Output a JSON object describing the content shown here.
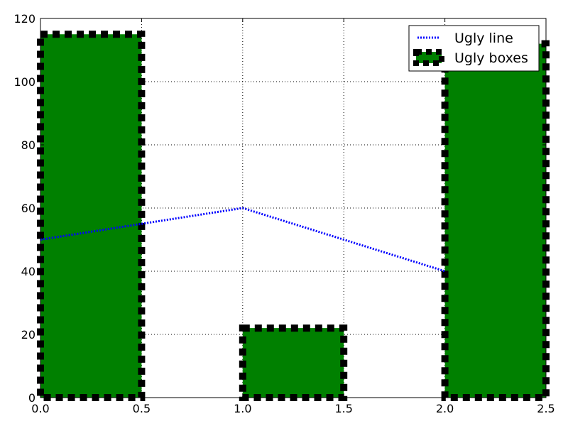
{
  "chart_data": {
    "type": "bar",
    "title": "",
    "xlabel": "",
    "ylabel": "",
    "xlim": [
      0,
      2.5
    ],
    "ylim": [
      0,
      120
    ],
    "grid": true,
    "legend_position": "top-right",
    "x_ticks": [
      "0.0",
      "0.5",
      "1.0",
      "1.5",
      "2.0",
      "2.5"
    ],
    "y_ticks": [
      "0",
      "20",
      "40",
      "60",
      "80",
      "100",
      "120"
    ],
    "bars": {
      "name": "Ugly boxes",
      "color": "#008000",
      "edge_color": "#000000",
      "edge_style": "dashed",
      "items": [
        {
          "x_start": 0.0,
          "x_end": 0.5,
          "value": 115
        },
        {
          "x_start": 1.0,
          "x_end": 1.5,
          "value": 22
        },
        {
          "x_start": 2.0,
          "x_end": 2.5,
          "value": 112
        }
      ]
    },
    "line": {
      "name": "Ugly line",
      "color": "#0000ff",
      "line_style": "dotted",
      "x": [
        0.0,
        0.5,
        1.0,
        1.5,
        2.0
      ],
      "y": [
        50,
        55,
        60,
        50,
        40
      ]
    },
    "legend": [
      {
        "label": "Ugly line",
        "kind": "line"
      },
      {
        "label": "Ugly boxes",
        "kind": "box"
      }
    ]
  }
}
